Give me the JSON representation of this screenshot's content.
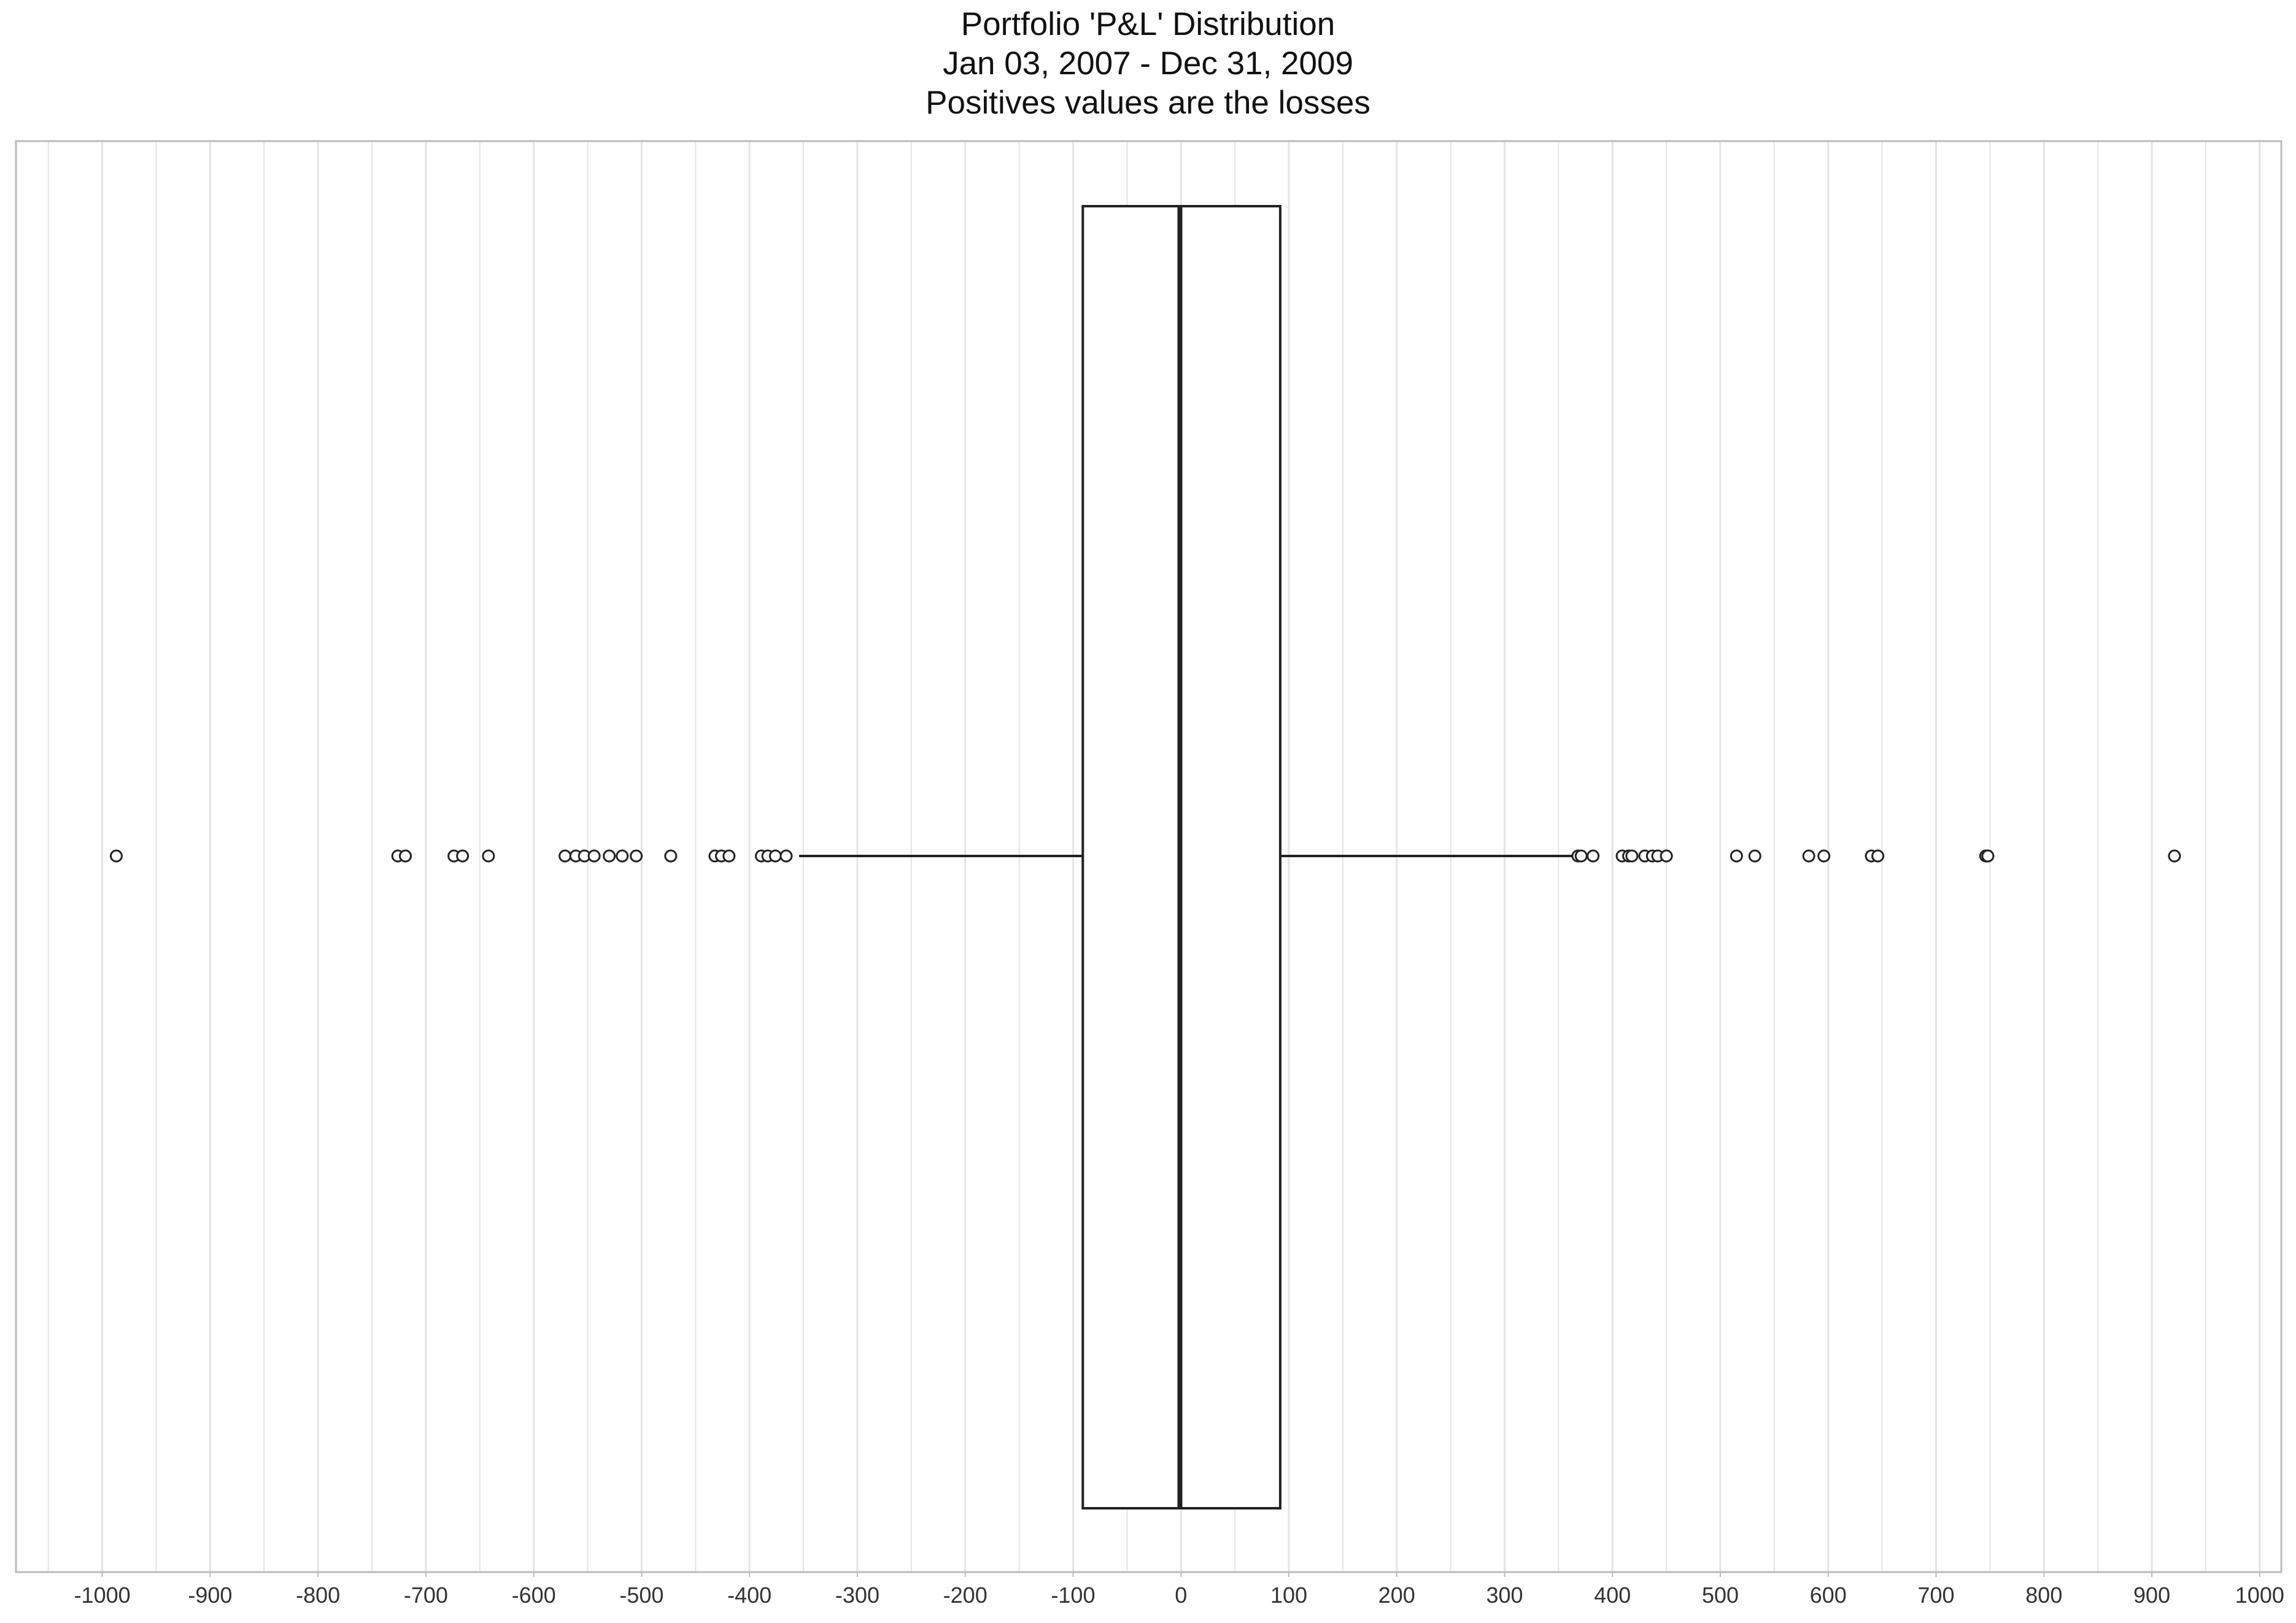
{
  "chart_data": {
    "type": "boxplot",
    "orientation": "horizontal",
    "title_lines": [
      "Portfolio 'P&L' Distribution",
      "Jan 03, 2007 - Dec 31, 2009",
      "Positives values are the losses"
    ],
    "xlabel": "",
    "ylabel": "",
    "xlim": [
      -1080,
      1020
    ],
    "xticks": [
      -1000,
      -900,
      -800,
      -700,
      -600,
      -500,
      -400,
      -300,
      -200,
      -100,
      0,
      100,
      200,
      300,
      400,
      500,
      600,
      700,
      800,
      900,
      1000
    ],
    "minor_grid_step": 50,
    "grid": true,
    "box": {
      "whisker_low": -354,
      "q1": -91,
      "median": -1,
      "q3": 92,
      "whisker_high": 365
    },
    "outliers": [
      -987,
      -726,
      -719,
      -674,
      -666,
      -642,
      -571,
      -561,
      -553,
      -544,
      -530,
      -518,
      -505,
      -473,
      -432,
      -426,
      -419,
      -389,
      -383,
      -376,
      -366,
      368,
      371,
      382,
      409,
      415,
      418,
      430,
      437,
      442,
      450,
      515,
      532,
      582,
      596,
      640,
      646,
      746,
      748,
      921
    ],
    "colors": {
      "box_line": "#222222",
      "outlier_edge": "#222222",
      "grid": "#e5e5e5",
      "frame": "#bbbbbb"
    }
  }
}
